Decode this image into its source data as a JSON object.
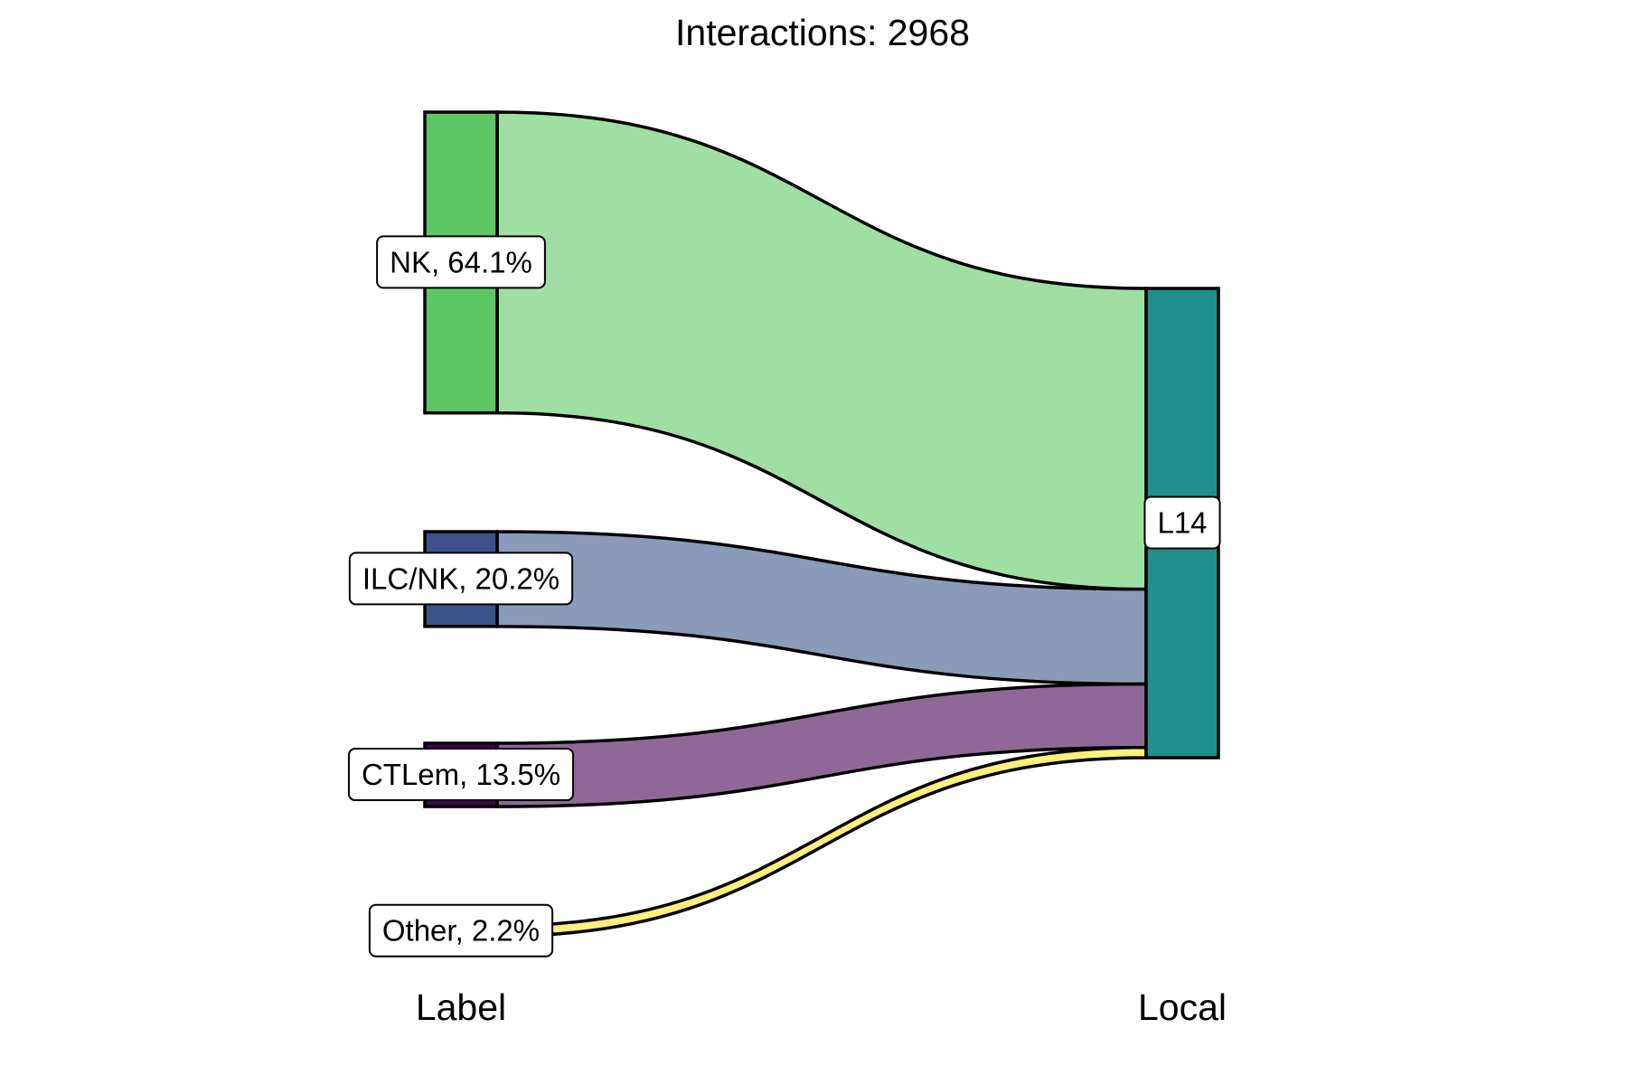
{
  "chart_data": {
    "type": "sankey",
    "title": "Interactions: 2968",
    "axes": [
      "Label",
      "Local"
    ],
    "source_nodes": [
      {
        "name": "NK",
        "label": "NK, 64.1%",
        "percent": 64.1,
        "node_color": "#5DC863",
        "flow_color": "#A0DFA2"
      },
      {
        "name": "ILC/NK",
        "label": "ILC/NK, 20.2%",
        "percent": 20.2,
        "node_color": "#3B528B",
        "flow_color": "#8C9AB9"
      },
      {
        "name": "CTLem",
        "label": "CTLem, 13.5%",
        "percent": 13.5,
        "node_color": "#440154",
        "flow_color": "#906898"
      },
      {
        "name": "Other",
        "label": "Other, 2.2%",
        "percent": 2.2,
        "node_color": "#FDE725",
        "flow_color": "#FDF07A"
      }
    ],
    "target_nodes": [
      {
        "name": "L14",
        "label": "L14",
        "percent": 100,
        "node_color": "#21908C"
      }
    ],
    "flows": [
      {
        "source": "NK",
        "target": "L14",
        "percent": 64.1
      },
      {
        "source": "ILC/NK",
        "target": "L14",
        "percent": 20.2
      },
      {
        "source": "CTLem",
        "target": "L14",
        "percent": 13.5
      },
      {
        "source": "Other",
        "target": "L14",
        "percent": 2.2
      }
    ]
  }
}
